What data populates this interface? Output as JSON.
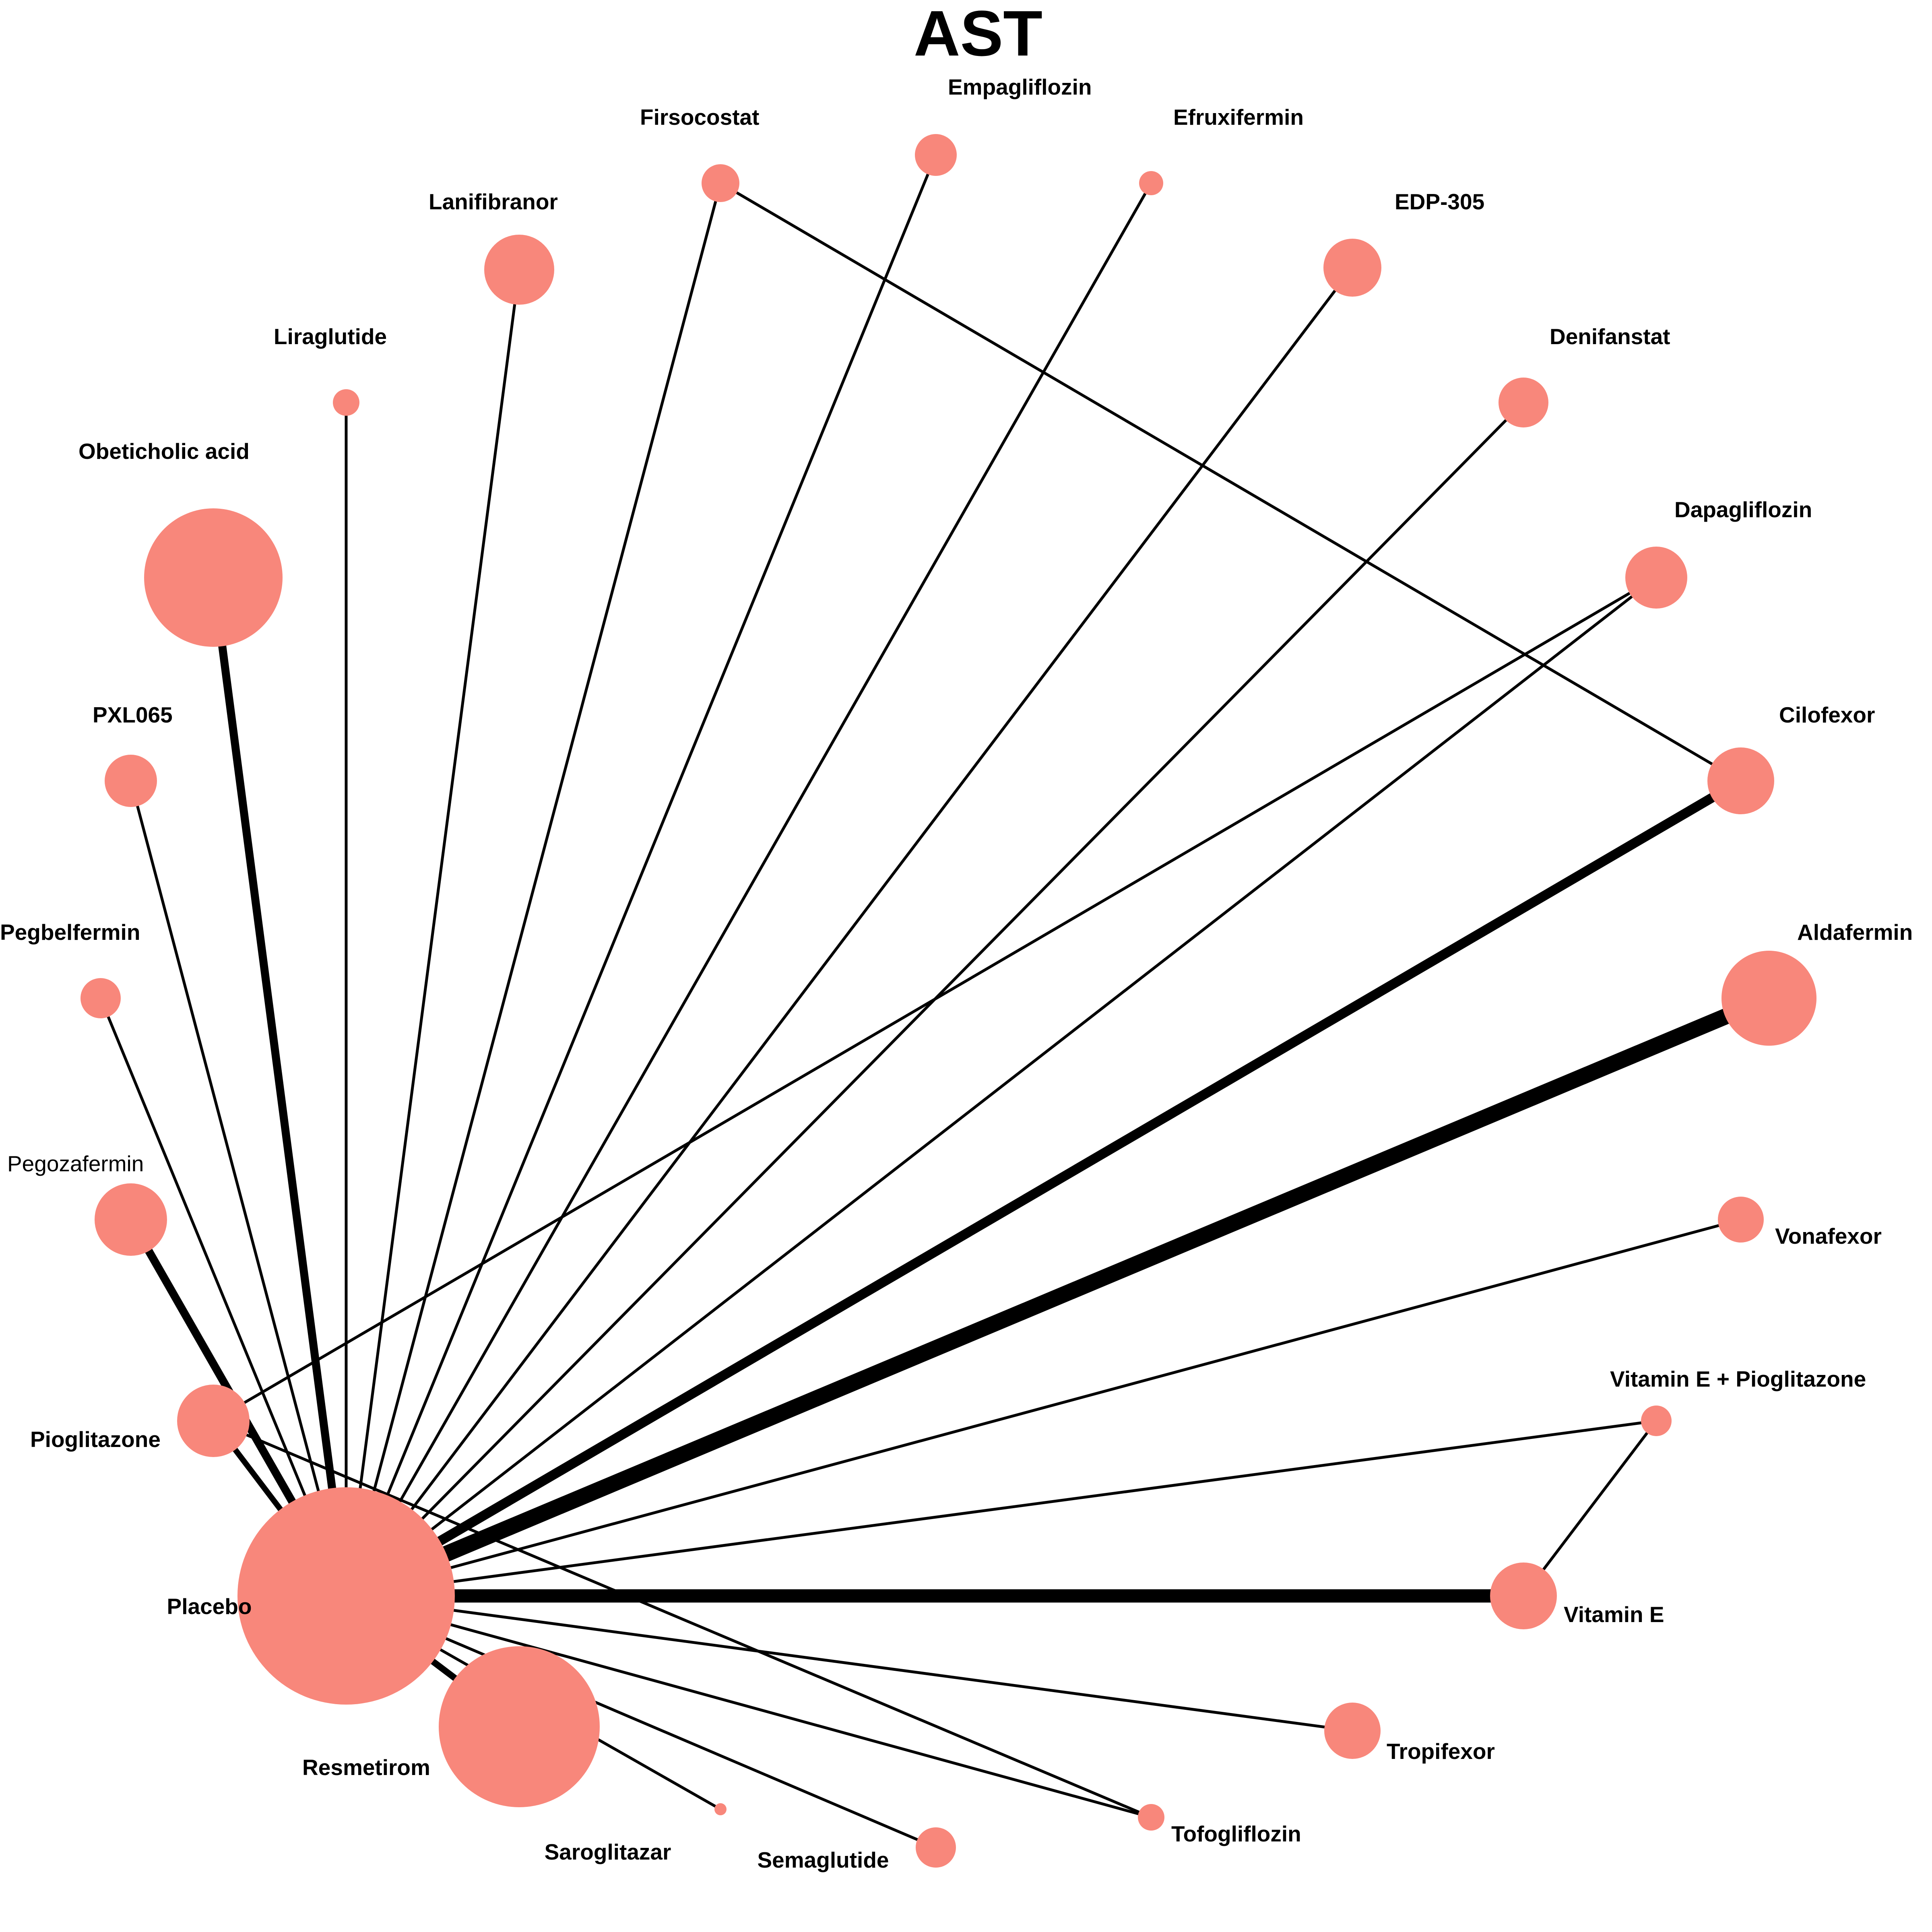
{
  "title": "AST",
  "colors": {
    "node_fill": "#F8877B",
    "edge": "#000000",
    "background": "#FFFFFF"
  },
  "nodes": [
    {
      "id": "placebo",
      "label": "Placebo",
      "size_rank": 1
    },
    {
      "id": "resmetirom",
      "label": "Resmetirom",
      "size_rank": 2
    },
    {
      "id": "obeticholic-acid",
      "label": "Obeticholic acid",
      "size_rank": 3
    },
    {
      "id": "aldafermin",
      "label": "Aldafermin",
      "size_rank": 4
    },
    {
      "id": "lanifibranor",
      "label": "Lanifibranor",
      "size_rank": 5
    },
    {
      "id": "pegozafermin",
      "label": "Pegozafermin",
      "size_rank": 6
    },
    {
      "id": "cilofexor",
      "label": "Cilofexor",
      "size_rank": 7
    },
    {
      "id": "pioglitazone",
      "label": "Pioglitazone",
      "size_rank": 8
    },
    {
      "id": "vitamin-e",
      "label": "Vitamin E",
      "size_rank": 9
    },
    {
      "id": "dapagliflozin",
      "label": "Dapagliflozin",
      "size_rank": 10
    },
    {
      "id": "edp-305",
      "label": "EDP-305",
      "size_rank": 11
    },
    {
      "id": "tropifexor",
      "label": "Tropifexor",
      "size_rank": 12
    },
    {
      "id": "pxl065",
      "label": "PXL065",
      "size_rank": 13
    },
    {
      "id": "denifanstat",
      "label": "Denifanstat",
      "size_rank": 14
    },
    {
      "id": "vonafexor",
      "label": "Vonafexor",
      "size_rank": 15
    },
    {
      "id": "empagliflozin",
      "label": "Empagliflozin",
      "size_rank": 16
    },
    {
      "id": "semaglutide",
      "label": "Semaglutide",
      "size_rank": 17
    },
    {
      "id": "pegbelfermin",
      "label": "Pegbelfermin",
      "size_rank": 18
    },
    {
      "id": "firsocostat",
      "label": "Firsocostat",
      "size_rank": 19
    },
    {
      "id": "vitamin-e-pioglitazone",
      "label": "Vitamin E + Pioglitazone",
      "size_rank": 20
    },
    {
      "id": "tofogliflozin",
      "label": "Tofogliflozin",
      "size_rank": 21
    },
    {
      "id": "liraglutide",
      "label": "Liraglutide",
      "size_rank": 22
    },
    {
      "id": "efruxifermin",
      "label": "Efruxifermin",
      "size_rank": 23
    },
    {
      "id": "saroglitazar",
      "label": "Saroglitazar",
      "size_rank": 24
    }
  ],
  "edges": [
    {
      "from": "placebo",
      "to": "aldafermin",
      "weight_rank": 1
    },
    {
      "from": "placebo",
      "to": "vitamin-e",
      "weight_rank": 2
    },
    {
      "from": "placebo",
      "to": "cilofexor",
      "weight_rank": 3
    },
    {
      "from": "placebo",
      "to": "obeticholic-acid",
      "weight_rank": 4
    },
    {
      "from": "placebo",
      "to": "pegozafermin",
      "weight_rank": 5
    },
    {
      "from": "placebo",
      "to": "resmetirom",
      "weight_rank": 6
    },
    {
      "from": "placebo",
      "to": "pioglitazone",
      "weight_rank": 7
    },
    {
      "from": "placebo",
      "to": "pxl065",
      "weight_rank": 8
    },
    {
      "from": "placebo",
      "to": "pegbelfermin",
      "weight_rank": 8
    },
    {
      "from": "placebo",
      "to": "liraglutide",
      "weight_rank": 8
    },
    {
      "from": "placebo",
      "to": "lanifibranor",
      "weight_rank": 8
    },
    {
      "from": "placebo",
      "to": "firsocostat",
      "weight_rank": 8
    },
    {
      "from": "placebo",
      "to": "empagliflozin",
      "weight_rank": 8
    },
    {
      "from": "placebo",
      "to": "efruxifermin",
      "weight_rank": 8
    },
    {
      "from": "placebo",
      "to": "edp-305",
      "weight_rank": 8
    },
    {
      "from": "placebo",
      "to": "denifanstat",
      "weight_rank": 8
    },
    {
      "from": "placebo",
      "to": "dapagliflozin",
      "weight_rank": 8
    },
    {
      "from": "placebo",
      "to": "vonafexor",
      "weight_rank": 8
    },
    {
      "from": "placebo",
      "to": "vitamin-e-pioglitazone",
      "weight_rank": 8
    },
    {
      "from": "placebo",
      "to": "tropifexor",
      "weight_rank": 8
    },
    {
      "from": "placebo",
      "to": "tofogliflozin",
      "weight_rank": 8
    },
    {
      "from": "placebo",
      "to": "semaglutide",
      "weight_rank": 8
    },
    {
      "from": "placebo",
      "to": "saroglitazar",
      "weight_rank": 8
    },
    {
      "from": "firsocostat",
      "to": "cilofexor",
      "weight_rank": 8
    },
    {
      "from": "pioglitazone",
      "to": "dapagliflozin",
      "weight_rank": 8
    },
    {
      "from": "pioglitazone",
      "to": "tofogliflozin",
      "weight_rank": 8
    },
    {
      "from": "vitamin-e",
      "to": "vitamin-e-pioglitazone",
      "weight_rank": 8
    }
  ]
}
